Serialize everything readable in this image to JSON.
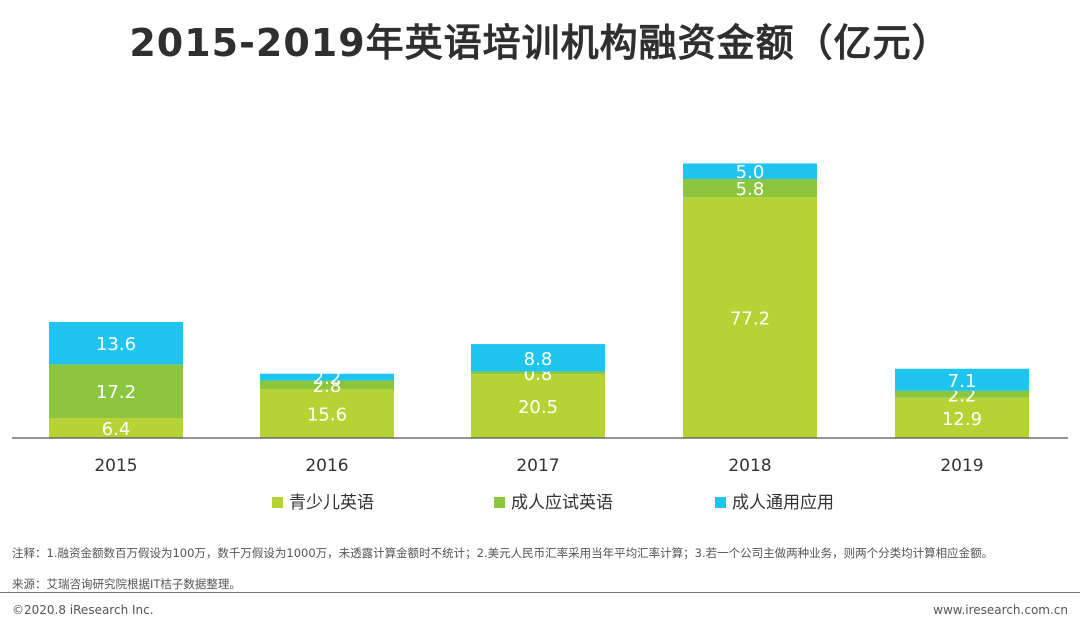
{
  "title": "2015-2019年英语培训机构融资金额（亿元）",
  "chart_data": {
    "type": "bar",
    "stacked": true,
    "categories": [
      "2015",
      "2016",
      "2017",
      "2018",
      "2019"
    ],
    "series": [
      {
        "name": "青少儿英语",
        "color": "#b5d334",
        "values": [
          6.4,
          15.6,
          20.5,
          77.2,
          12.9
        ]
      },
      {
        "name": "成人应试英语",
        "color": "#8cc63f",
        "values": [
          17.2,
          2.8,
          0.8,
          5.8,
          2.2
        ]
      },
      {
        "name": "成人通用应用",
        "color": "#1fc5ee",
        "values": [
          13.6,
          2.2,
          8.8,
          5.0,
          7.1
        ]
      }
    ],
    "value_labels": [
      [
        "6.4",
        "15.6",
        "20.5",
        "77.2",
        "12.9"
      ],
      [
        "17.2",
        "2.8",
        "0.8",
        "5.8",
        "2.2"
      ],
      [
        "13.6",
        "2.2",
        "8.8",
        "5.0",
        "7.1"
      ]
    ],
    "ylim": [
      0,
      90
    ],
    "grid": false,
    "legend_position": "bottom"
  },
  "notes": {
    "note1": "注释：1.融资金额数百万假设为100万，数千万假设为1000万，未透露计算金额时不统计；2.美元人民币汇率采用当年平均汇率计算；3.若一个公司主做两种业务，则两个分类均计算相应金额。",
    "note2": "来源：艾瑞咨询研究院根据IT桔子数据整理。"
  },
  "footer": {
    "copyright": "©2020.8 iResearch Inc.",
    "website": "www.iresearch.com.cn"
  }
}
